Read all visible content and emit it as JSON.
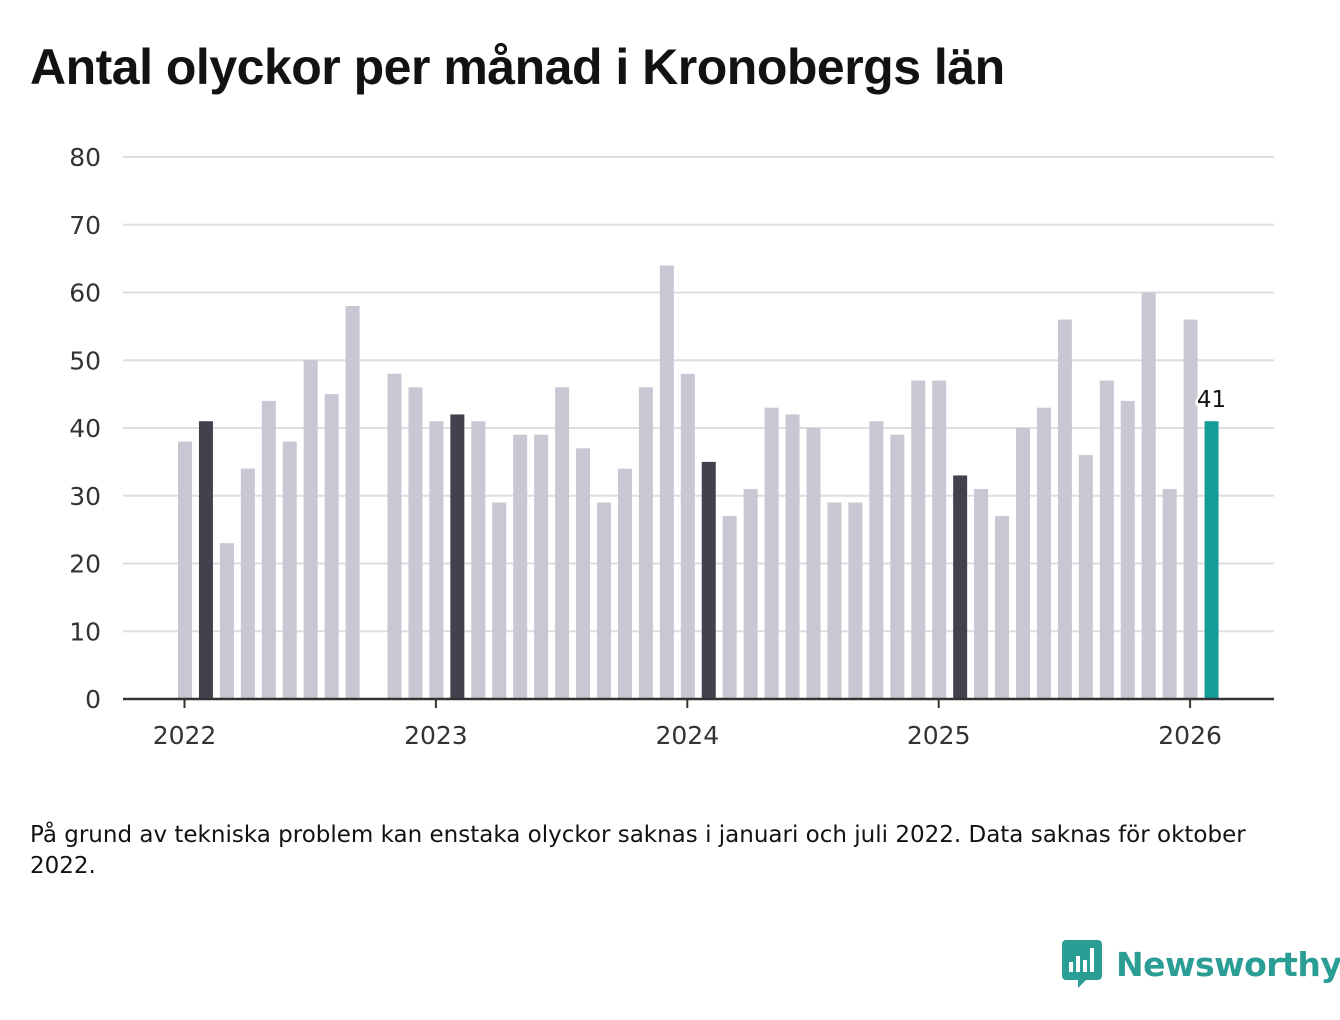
{
  "chart_data": {
    "type": "bar",
    "title": "Antal olyckor per månad i Kronobergs län",
    "xlabel": "",
    "ylabel": "",
    "ylim": [
      0,
      80
    ],
    "yticks": [
      0,
      10,
      20,
      30,
      40,
      50,
      60,
      70,
      80
    ],
    "xtick_labels": [
      "2022",
      "2023",
      "2024",
      "2025",
      "2026"
    ],
    "series": [
      {
        "name": "Antal olyckor",
        "start": "2022-01",
        "values": [
          38,
          41,
          23,
          34,
          44,
          38,
          50,
          45,
          58,
          null,
          48,
          46,
          41,
          42,
          41,
          29,
          39,
          39,
          46,
          37,
          29,
          34,
          46,
          64,
          48,
          35,
          27,
          31,
          43,
          42,
          40,
          29,
          29,
          41,
          39,
          47,
          47,
          33,
          31,
          27,
          40,
          43,
          56,
          36,
          47,
          44,
          60,
          31,
          56,
          41
        ]
      }
    ],
    "colors": {
      "default_bar": "#c8c7d3",
      "highlight_bar": "#42414e",
      "latest_bar": "#129e96",
      "grid": "#dedee2",
      "axis": "#333333"
    },
    "annotation": {
      "label": "41",
      "target": "latest"
    }
  },
  "footnote": "På grund av tekniska problem kan enstaka olyckor saknas i januari och juli 2022. Data saknas för oktober 2022.",
  "logo": {
    "text": "Newsworthy",
    "icon": "newsworthy-chart-bubble-icon",
    "color": "#2a9d95"
  }
}
